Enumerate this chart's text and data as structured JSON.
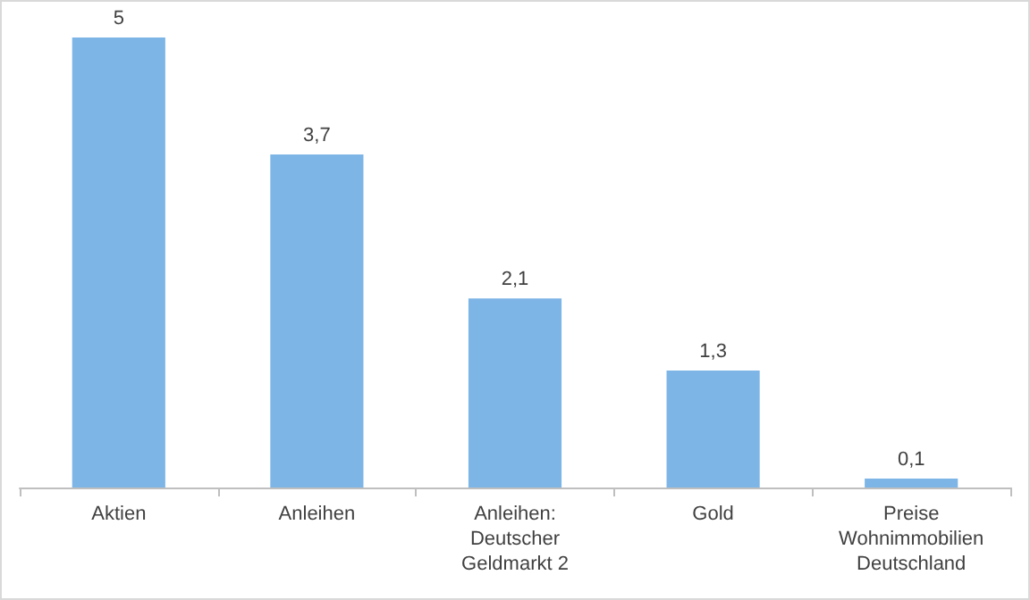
{
  "chart_data": {
    "type": "bar",
    "categories": [
      "Aktien",
      "Anleihen",
      "Anleihen: Deutscher Geldmarkt 2",
      "Gold",
      "Preise Wohnimmobilien Deutschland"
    ],
    "values": [
      5,
      3.7,
      2.1,
      1.3,
      0.1
    ],
    "value_labels": [
      "5",
      "3,7",
      "2,1",
      "1,3",
      "0,1"
    ],
    "color": "#7db5e6"
  }
}
